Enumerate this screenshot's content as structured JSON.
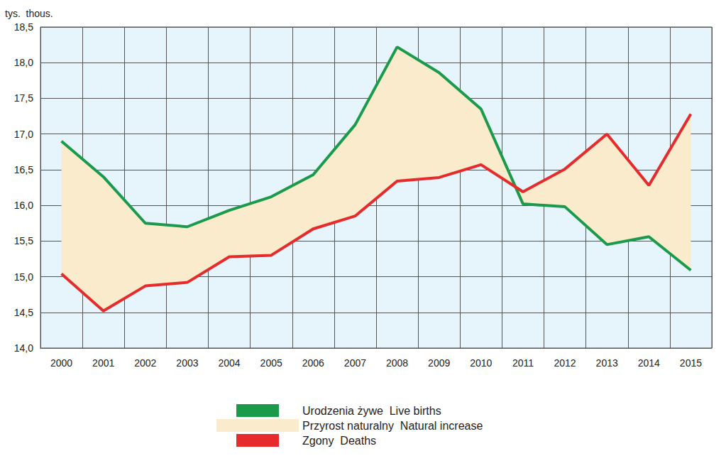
{
  "chart_data": {
    "type": "line",
    "y_label": "tys.  thous.",
    "categories": [
      "2000",
      "2001",
      "2002",
      "2003",
      "2004",
      "2005",
      "2006",
      "2007",
      "2008",
      "2009",
      "2010",
      "2011",
      "2012",
      "2013",
      "2014",
      "2015"
    ],
    "series": [
      {
        "name": "Urodzenia żywe  Live births",
        "color": "#1b9a4b",
        "type": "line",
        "values": [
          16.9,
          16.4,
          15.75,
          15.7,
          15.93,
          16.12,
          16.43,
          17.13,
          18.22,
          17.86,
          17.35,
          16.02,
          15.98,
          15.45,
          15.56,
          15.09
        ]
      },
      {
        "name": "Przyrost naturalny  Natural increase",
        "color": "#f9ebcc",
        "type": "band"
      },
      {
        "name": "Zgony  Deaths",
        "color": "#e52b2b",
        "type": "line",
        "values": [
          15.04,
          14.52,
          14.87,
          14.92,
          15.28,
          15.3,
          15.67,
          15.85,
          16.34,
          16.39,
          16.57,
          16.19,
          16.51,
          17.0,
          16.28,
          17.28
        ]
      }
    ],
    "ylim": [
      14,
      18.5
    ],
    "yticks": [
      {
        "value": 14,
        "label": "14,0"
      },
      {
        "value": 14.5,
        "label": "14,5"
      },
      {
        "value": 15,
        "label": "15,0"
      },
      {
        "value": 15.5,
        "label": "15,5"
      },
      {
        "value": 16,
        "label": "16,0"
      },
      {
        "value": 16.5,
        "label": "16,5"
      },
      {
        "value": 17,
        "label": "17,0"
      },
      {
        "value": 17.5,
        "label": "17,5"
      },
      {
        "value": 18,
        "label": "18,0"
      },
      {
        "value": 18.5,
        "label": "18,5"
      }
    ],
    "grid": true,
    "legend": "bottom"
  }
}
